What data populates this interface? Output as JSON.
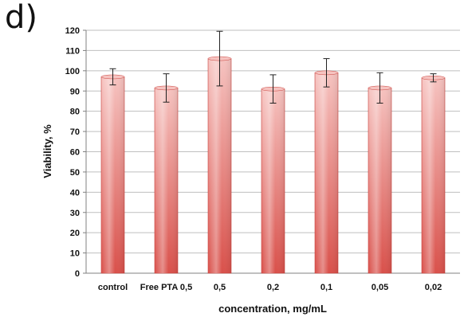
{
  "panel_label": "d)",
  "chart_data": {
    "type": "bar",
    "title": "",
    "xlabel": "concentration, mg/mL",
    "ylabel": "Viability, %",
    "categories": [
      "control",
      "Free PTA 0,5",
      "0,5",
      "0,2",
      "0,1",
      "0,05",
      "0,02"
    ],
    "values": [
      97,
      91.5,
      106,
      91,
      99,
      91.5,
      96.5
    ],
    "errors": [
      4,
      7,
      13.5,
      7,
      7,
      7.5,
      2
    ],
    "ylim": [
      0,
      120
    ],
    "yticks": [
      0,
      10,
      20,
      30,
      40,
      50,
      60,
      70,
      80,
      90,
      100,
      110,
      120
    ],
    "grid": true,
    "legend": "none",
    "colors": {
      "bar_top": "#f6c3c0",
      "bar_bottom": "#d9504a",
      "bar_edge": "#c9403b",
      "grid": "#bfbfbf",
      "axis": "#808080"
    }
  }
}
